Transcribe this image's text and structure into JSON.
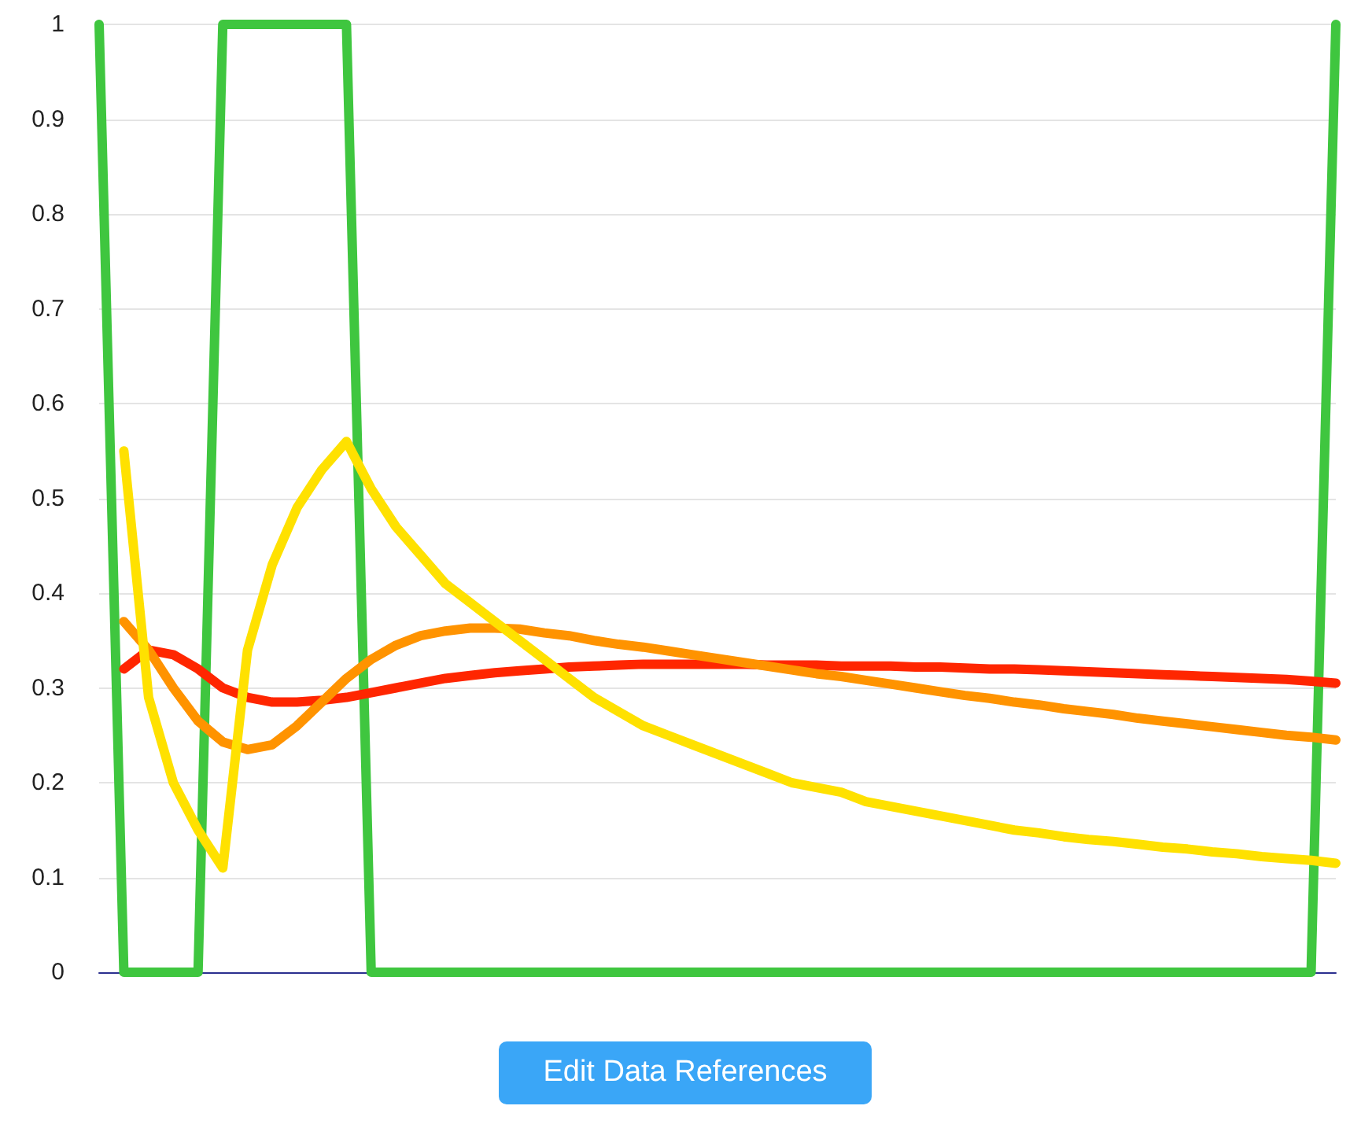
{
  "chart_data": {
    "type": "line",
    "categories": [
      null,
      null,
      null,
      null,
      null,
      null,
      null,
      null,
      null,
      null,
      null,
      null,
      null,
      null,
      null,
      null,
      null,
      null,
      null,
      null,
      null,
      null,
      null,
      null,
      null,
      null,
      null,
      null,
      null,
      null,
      null,
      null,
      null,
      null,
      null,
      null,
      null,
      null,
      null,
      null,
      null,
      null,
      null,
      null,
      null,
      null,
      null,
      null,
      null,
      null,
      null
    ],
    "ylim": [
      0,
      1
    ],
    "yticks": [
      0,
      0.1,
      0.2,
      0.3,
      0.4,
      0.5,
      0.6,
      0.7,
      0.8,
      0.9,
      1
    ],
    "tick_labels": "y",
    "grid": "y",
    "marker": "none",
    "line_style": "solid",
    "series": [
      {
        "color": "#3fc63f",
        "values": [
          1,
          0,
          0,
          0,
          0,
          1,
          1,
          1,
          1,
          1,
          1,
          0,
          0,
          0,
          0,
          0,
          0,
          0,
          0,
          0,
          0,
          0,
          0,
          0,
          0,
          0,
          0,
          0,
          0,
          0,
          0,
          0,
          0,
          0,
          0,
          0,
          0,
          0,
          0,
          0,
          0,
          0,
          0,
          0,
          0,
          0,
          0,
          0,
          0,
          0,
          1
        ]
      },
      {
        "color": "#ff2600",
        "values": [
          null,
          0.32,
          0.34,
          0.335,
          0.32,
          0.3,
          0.29,
          0.285,
          0.285,
          0.287,
          0.29,
          0.295,
          0.3,
          0.305,
          0.31,
          0.313,
          0.316,
          0.318,
          0.32,
          0.322,
          0.323,
          0.324,
          0.325,
          0.325,
          0.325,
          0.325,
          0.325,
          0.324,
          0.324,
          0.324,
          0.323,
          0.323,
          0.323,
          0.322,
          0.322,
          0.321,
          0.32,
          0.32,
          0.319,
          0.318,
          0.317,
          0.316,
          0.315,
          0.314,
          0.313,
          0.312,
          0.311,
          0.31,
          0.309,
          0.307,
          0.305
        ]
      },
      {
        "color": "#ff9300",
        "values": [
          null,
          0.37,
          0.34,
          0.3,
          0.265,
          0.243,
          0.235,
          0.24,
          0.26,
          0.285,
          0.31,
          0.33,
          0.345,
          0.355,
          0.36,
          0.363,
          0.363,
          0.362,
          0.358,
          0.355,
          0.35,
          0.346,
          0.343,
          0.339,
          0.335,
          0.331,
          0.327,
          0.323,
          0.319,
          0.315,
          0.312,
          0.308,
          0.304,
          0.3,
          0.296,
          0.292,
          0.289,
          0.285,
          0.282,
          0.278,
          0.275,
          0.272,
          0.268,
          0.265,
          0.262,
          0.259,
          0.256,
          0.253,
          0.25,
          0.248,
          0.245
        ]
      },
      {
        "color": "#ffe100",
        "values": [
          null,
          0.55,
          0.29,
          0.2,
          0.15,
          0.11,
          0.34,
          0.43,
          0.49,
          0.53,
          0.56,
          0.51,
          0.47,
          0.44,
          0.41,
          0.39,
          0.37,
          0.35,
          0.33,
          0.31,
          0.29,
          0.275,
          0.26,
          0.25,
          0.24,
          0.23,
          0.22,
          0.21,
          0.2,
          0.195,
          0.19,
          0.18,
          0.175,
          0.17,
          0.165,
          0.16,
          0.155,
          0.15,
          0.147,
          0.143,
          0.14,
          0.138,
          0.135,
          0.132,
          0.13,
          0.127,
          0.125,
          0.122,
          0.12,
          0.118,
          0.115
        ]
      }
    ],
    "annotations": [
      "Edit Data References"
    ]
  }
}
